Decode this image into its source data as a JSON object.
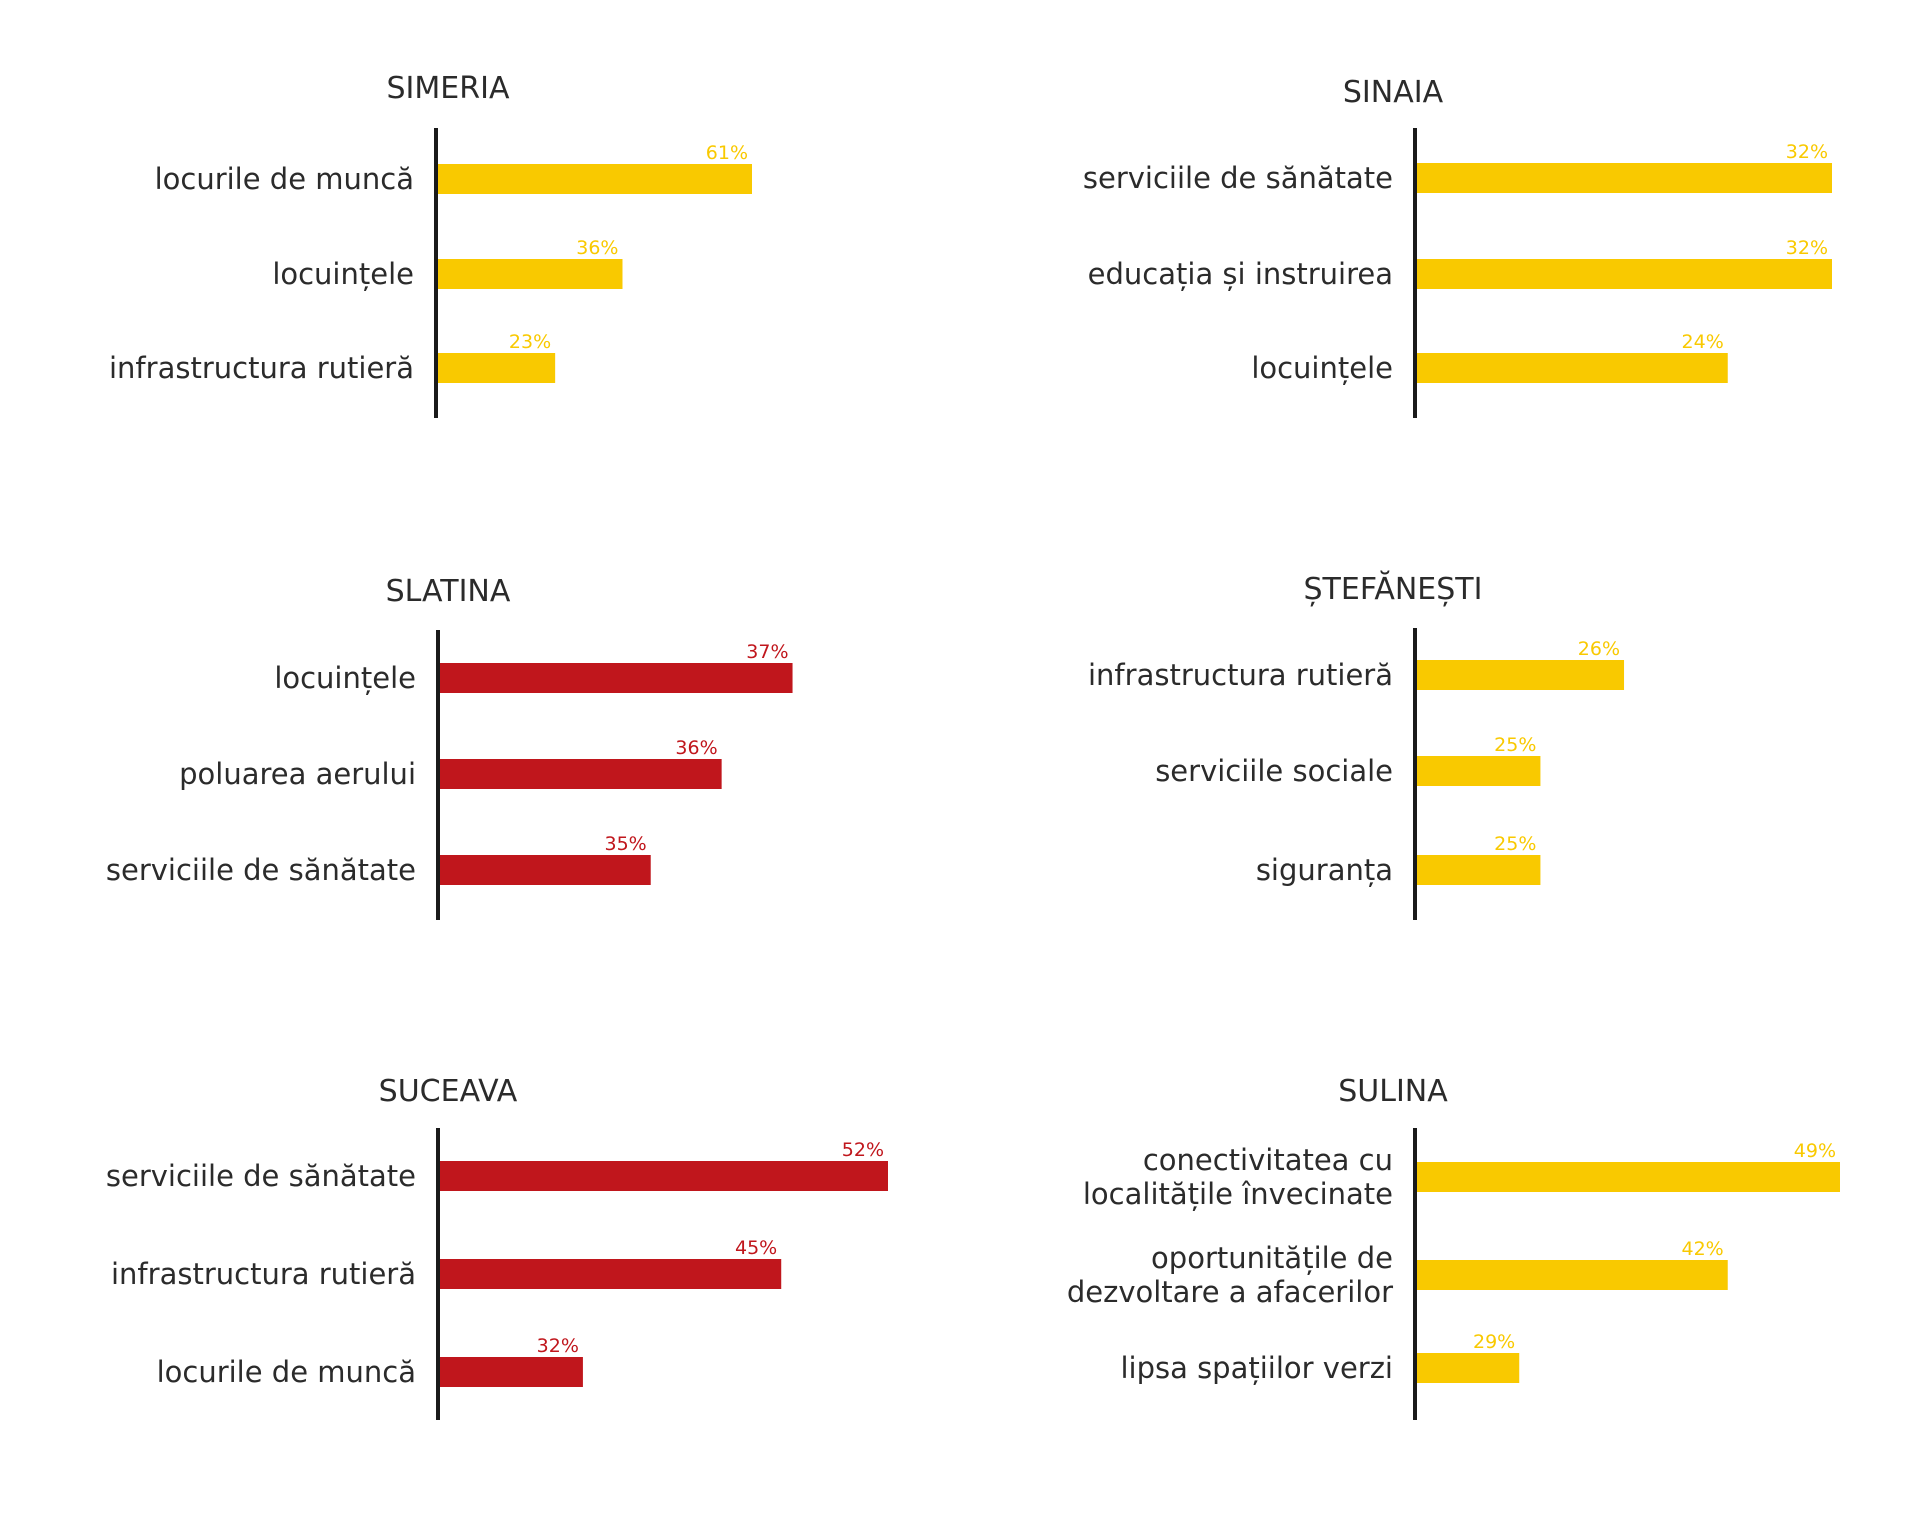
{
  "chart_data": [
    {
      "type": "bar",
      "orientation": "horizontal",
      "title": "SIMERIA",
      "categories": [
        [
          "locurile de muncă"
        ],
        [
          "locuințele"
        ],
        [
          "infrastructura rutieră"
        ]
      ],
      "values": [
        61,
        36,
        23
      ],
      "value_labels": [
        "61%",
        "36%",
        "23%"
      ],
      "unit": "%",
      "color": "#f9c900",
      "xlim": [
        0,
        61
      ],
      "grid": false
    },
    {
      "type": "bar",
      "orientation": "horizontal",
      "title": "SINAIA",
      "categories": [
        [
          "serviciile de sănătate"
        ],
        [
          "educația și instruirea"
        ],
        [
          "locuințele"
        ]
      ],
      "values": [
        32,
        32,
        24
      ],
      "value_labels": [
        "32%",
        "32%",
        "24%"
      ],
      "unit": "%",
      "color": "#f9c900",
      "xlim": [
        0,
        32
      ],
      "grid": false
    },
    {
      "type": "bar",
      "orientation": "horizontal",
      "title": "SLATINA",
      "categories": [
        [
          "locuințele"
        ],
        [
          "poluarea aerului"
        ],
        [
          "serviciile de sănătate"
        ]
      ],
      "values": [
        37,
        36,
        35
      ],
      "value_labels": [
        "37%",
        "36%",
        "35%"
      ],
      "unit": "%",
      "color": "#c0161c",
      "xlim": [
        32,
        37.5
      ],
      "grid": false
    },
    {
      "type": "bar",
      "orientation": "horizontal",
      "title": "ȘTEFĂNEȘTI",
      "categories": [
        [
          "infrastructura rutieră"
        ],
        [
          "serviciile sociale"
        ],
        [
          "siguranța"
        ]
      ],
      "values": [
        26,
        25,
        25
      ],
      "value_labels": [
        "26%",
        "25%",
        "25%"
      ],
      "unit": "%",
      "color": "#f9c900",
      "xlim": [
        23.5,
        27.65
      ],
      "grid": false
    },
    {
      "type": "bar",
      "orientation": "horizontal",
      "title": "SUCEAVA",
      "categories": [
        [
          "serviciile de sănătate"
        ],
        [
          "infrastructura rutieră"
        ],
        [
          "locurile de muncă"
        ]
      ],
      "values": [
        52,
        45,
        32
      ],
      "value_labels": [
        "52%",
        "45%",
        "32%"
      ],
      "unit": "%",
      "color": "#c0161c",
      "xlim": [
        22.5,
        52
      ],
      "grid": false
    },
    {
      "type": "bar",
      "orientation": "horizontal",
      "title": "SULINA",
      "categories": [
        [
          "conectivitatea cu",
          "localitățile învecinate"
        ],
        [
          "oportunitățile de",
          "dezvoltare a afacerilor"
        ],
        [
          "lipsa spațiilor verzi"
        ]
      ],
      "values": [
        49,
        42,
        29
      ],
      "value_labels": [
        "49%",
        "42%",
        "29%"
      ],
      "unit": "%",
      "color": "#f9c900",
      "xlim": [
        22.5,
        49
      ],
      "grid": false
    }
  ]
}
